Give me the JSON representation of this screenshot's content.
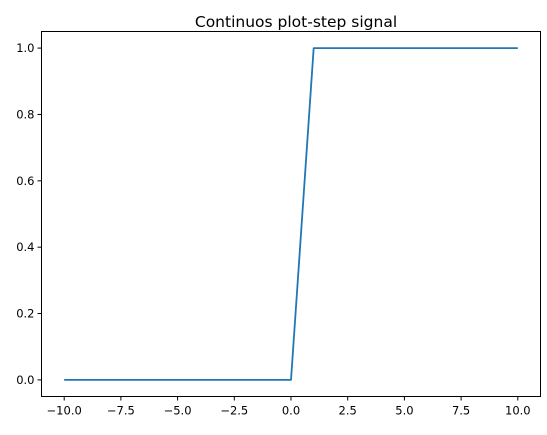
{
  "chart_data": {
    "type": "line",
    "title": "Continuos plot-step signal",
    "xlabel": "",
    "ylabel": "",
    "xlim": [
      -11,
      11
    ],
    "ylim": [
      -0.05,
      1.05
    ],
    "grid": false,
    "x_ticks": [
      -10.0,
      -7.5,
      -5.0,
      -2.5,
      0.0,
      2.5,
      5.0,
      7.5,
      10.0
    ],
    "x_tick_labels": [
      "−10.0",
      "−7.5",
      "−5.0",
      "−2.5",
      "0.0",
      "2.5",
      "5.0",
      "7.5",
      "10.0"
    ],
    "y_ticks": [
      0.0,
      0.2,
      0.4,
      0.6,
      0.8,
      1.0
    ],
    "y_tick_labels": [
      "0.0",
      "0.2",
      "0.4",
      "0.6",
      "0.8",
      "1.0"
    ],
    "series": [
      {
        "color": "#1f77b4",
        "x": [
          -10,
          0,
          1,
          10
        ],
        "y": [
          0,
          0,
          1,
          1
        ]
      }
    ]
  }
}
